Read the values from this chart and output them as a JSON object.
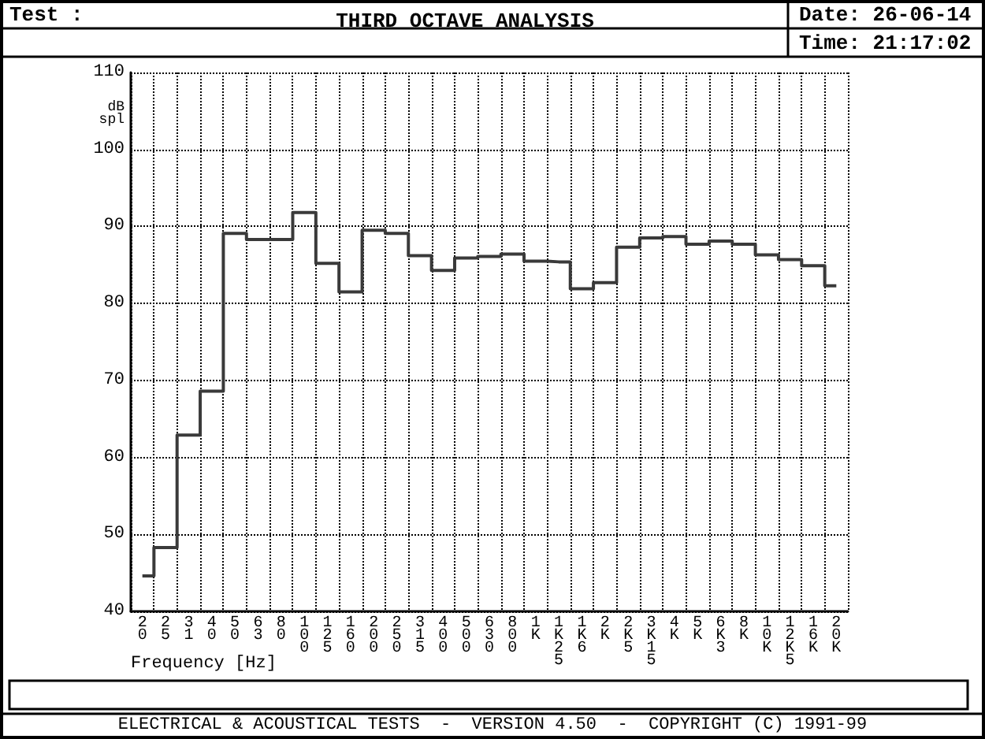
{
  "chart_data": {
    "type": "step",
    "title": "THIRD OCTAVE ANALYSIS",
    "xlabel": "Frequency [Hz]",
    "ylabel": "dB spl",
    "annotations": [
      "Test :",
      "Date: 26-06-14",
      "Time: 21:17:02",
      "ELECTRICAL & ACOUSTICAL TESTS  -  VERSION 4.50  -  COPYRIGHT (C) 1991-99"
    ],
    "categories": [
      "20",
      "25",
      "31",
      "40",
      "50",
      "63",
      "80",
      "100",
      "125",
      "160",
      "200",
      "250",
      "315",
      "400",
      "500",
      "630",
      "800",
      "1K",
      "1K25",
      "1K6",
      "2K",
      "2K5",
      "3K15",
      "4K",
      "5K",
      "6K3",
      "8K",
      "10K",
      "12K5",
      "16K",
      "20K"
    ],
    "series": [
      {
        "color": "#3a3a3a",
        "values": [
          44.6,
          48.3,
          62.9,
          68.6,
          89.1,
          88.3,
          88.3,
          91.8,
          85.2,
          81.5,
          89.5,
          89.1,
          86.2,
          84.3,
          85.9,
          86.1,
          86.4,
          85.5,
          85.4,
          81.9,
          82.7,
          87.3,
          88.5,
          88.7,
          87.7,
          88.1,
          87.7,
          86.3,
          85.7,
          84.9,
          82.3
        ]
      }
    ],
    "ylim": [
      40,
      110
    ],
    "yticks": [
      40,
      50,
      60,
      70,
      80,
      90,
      100,
      110
    ],
    "grid": true,
    "line_style": "solid",
    "marker": "none"
  }
}
